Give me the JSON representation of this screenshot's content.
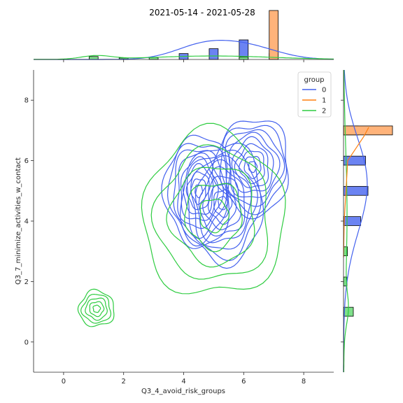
{
  "chart_data": {
    "type": "joint-kde",
    "title": "2021-05-14 - 2021-05-28",
    "xlabel": "Q3_4_avoid_risk_groups",
    "ylabel": "Q3_7_minimize_activities_w_contact",
    "xlim": [
      -1,
      9
    ],
    "ylim": [
      -1,
      9
    ],
    "xticks": [
      0,
      2,
      4,
      6,
      8
    ],
    "yticks": [
      0,
      2,
      4,
      6,
      8
    ],
    "legend": {
      "title": "group",
      "placement": "top-right",
      "entries": [
        "0",
        "1",
        "2"
      ]
    },
    "colors": {
      "0": "#4361ee",
      "1": "#ff7f0e",
      "2": "#2ecc40"
    },
    "contour_fill_colors": {
      "0": "#6b83f2",
      "1": "#ffb37a",
      "2": "#7fe08a"
    },
    "series": [
      {
        "name": "0",
        "kde_centers": [
          {
            "x": 5.3,
            "y": 4.6,
            "sx": 1.1,
            "sy": 1.6
          },
          {
            "x": 6.3,
            "y": 5.8,
            "sx": 1.0,
            "sy": 1.3
          },
          {
            "x": 4.5,
            "y": 5.0,
            "sx": 0.9,
            "sy": 1.5
          }
        ],
        "contour_levels": 9,
        "x_marginal_bins": [
          {
            "x": 4,
            "h": 0.12
          },
          {
            "x": 5,
            "h": 0.22
          },
          {
            "x": 6,
            "h": 0.4
          },
          {
            "x": 7,
            "h": 0.12
          }
        ],
        "y_marginal_bins": [
          {
            "y": 7,
            "w": 0.3
          },
          {
            "y": 6,
            "w": 0.45
          },
          {
            "y": 5,
            "w": 0.5
          },
          {
            "y": 4,
            "w": 0.35
          }
        ]
      },
      {
        "name": "1",
        "x_marginal_bins": [
          {
            "x": 7,
            "h": 1.0
          }
        ],
        "y_marginal_bins": [
          {
            "y": 7,
            "w": 1.0
          }
        ]
      },
      {
        "name": "2",
        "kde_centers": [
          {
            "x": 1.1,
            "y": 1.1,
            "sx": 0.5,
            "sy": 0.5
          },
          {
            "x": 5.0,
            "y": 4.2,
            "sx": 2.0,
            "sy": 2.3
          }
        ],
        "contour_levels": 5,
        "x_marginal_bins": [
          {
            "x": 1,
            "h": 0.06
          },
          {
            "x": 2,
            "h": 0.03
          },
          {
            "x": 3,
            "h": 0.04
          },
          {
            "x": 6,
            "h": 0.05
          }
        ],
        "y_marginal_bins": [
          {
            "y": 3,
            "w": 0.08
          },
          {
            "y": 2,
            "w": 0.07
          },
          {
            "y": 1,
            "w": 0.2
          }
        ]
      }
    ]
  }
}
